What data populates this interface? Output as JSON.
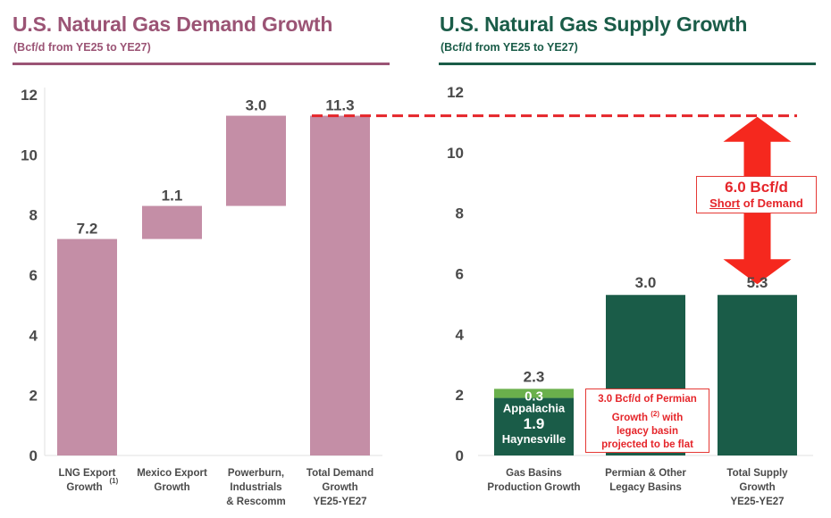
{
  "colors": {
    "demand_accent": "#9b5475",
    "demand_bar": "#c48ea6",
    "supply_accent": "#1a5c48",
    "supply_bar": "#1a5c48",
    "appalachia_bar": "#6ab04c",
    "gap_red": "#e5252a",
    "axis_text": "#4a4a4a"
  },
  "chart_data": [
    {
      "type": "bar",
      "subtype": "waterfall",
      "title": "U.S. Natural Gas Demand Growth",
      "subtitle": "(Bcf/d from YE25 to YE27)",
      "xlabel": "",
      "ylabel": "",
      "ylim": [
        0,
        12
      ],
      "yticks": [
        "0",
        "2",
        "4",
        "6",
        "8",
        "10",
        "12"
      ],
      "grid": false,
      "categories": [
        {
          "lines": [
            "LNG Export",
            "Growth"
          ],
          "superscript": "(1)"
        },
        {
          "lines": [
            "Mexico Export",
            "Growth"
          ]
        },
        {
          "lines": [
            "Powerburn,",
            "Industrials",
            "& Rescomm"
          ]
        },
        {
          "lines": [
            "Total Demand",
            "Growth",
            "YE25-YE27"
          ]
        }
      ],
      "bars": [
        {
          "base": 0,
          "value": 7.2,
          "label": "7.2"
        },
        {
          "base": 7.2,
          "value": 1.1,
          "label": "1.1"
        },
        {
          "base": 8.3,
          "value": 3.0,
          "label": "3.0"
        },
        {
          "base": 0,
          "value": 11.3,
          "label": "11.3"
        }
      ]
    },
    {
      "type": "bar",
      "subtype": "stacked",
      "title": "U.S. Natural Gas Supply Growth",
      "subtitle": "(Bcf/d from YE25 to YE27)",
      "xlabel": "",
      "ylabel": "",
      "ylim": [
        0,
        12
      ],
      "yticks": [
        "0",
        "2",
        "4",
        "6",
        "8",
        "10",
        "12"
      ],
      "grid": false,
      "categories": [
        {
          "lines": [
            "Gas Basins",
            "Production Growth"
          ]
        },
        {
          "lines": [
            "Permian & Other",
            "Legacy Basins"
          ]
        },
        {
          "lines": [
            "Total Supply",
            "Growth",
            "YE25-YE27"
          ]
        }
      ],
      "bars": [
        {
          "total_label": "2.3",
          "segments": [
            {
              "name": "Haynesville",
              "value": 1.9,
              "label": "1.9",
              "color": "#1a5c48"
            },
            {
              "name": "Appalachia",
              "value": 0.3,
              "label": "0.3",
              "color": "#6ab04c"
            }
          ]
        },
        {
          "total_label": "3.0",
          "segments": [
            {
              "name": "Permian & Other Legacy Basins",
              "value": 5.3,
              "label": "",
              "color": "#1a5c48"
            }
          ]
        },
        {
          "total_label": "5.3",
          "segments": [
            {
              "name": "Total Supply",
              "value": 5.3,
              "label": "",
              "color": "#1a5c48"
            }
          ]
        }
      ],
      "annotations": {
        "demand_line_value": 11.3,
        "gap": {
          "from": 5.3,
          "to": 11.3,
          "line1": "6.0 Bcf/d",
          "line2_underlined": "Short",
          "line2_rest": " of Demand"
        },
        "permian_note": [
          "3.0 Bcf/d of Permian",
          "Growth",
          "(2)",
          "with",
          "legacy basin",
          "projected to be flat"
        ]
      }
    }
  ]
}
